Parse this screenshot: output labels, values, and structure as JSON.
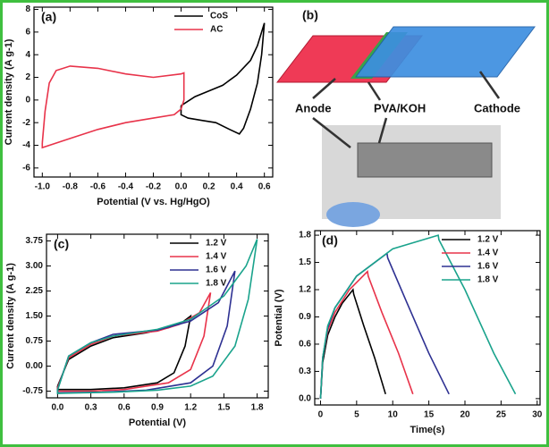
{
  "chart_data": [
    {
      "type": "line",
      "title": "(a)",
      "x_label": "Potential (V vs. Hg/HgO)",
      "y_label": "Current density (A g-1)",
      "xlim": [
        -1.06,
        0.66
      ],
      "ylim": [
        -6.8,
        8.2
      ],
      "xticks": [
        {
          "value": -1.0,
          "label": "-1.0"
        },
        -0.8,
        -0.6,
        -0.4,
        -0.2,
        {
          "value": 0.0,
          "label": "0.0"
        },
        0.2,
        0.4,
        0.6
      ],
      "yticks": [
        -6,
        -4,
        -2,
        0,
        2,
        4,
        6,
        8
      ],
      "legend": "upper right",
      "series": [
        {
          "name": "CoS",
          "color": "#000000",
          "x": [
            0,
            0.1,
            0.2,
            0.3,
            0.4,
            0.5,
            0.55,
            0.6,
            0.58,
            0.55,
            0.5,
            0.45,
            0.42,
            0.35,
            0.25,
            0.15,
            0.05,
            0,
            0
          ],
          "values": [
            -0.5,
            0.3,
            0.8,
            1.3,
            2.2,
            3.5,
            4.8,
            6.8,
            4,
            1.5,
            -0.8,
            -2.5,
            -3,
            -2.6,
            -2,
            -1.8,
            -1.6,
            -1.3,
            -0.5
          ]
        },
        {
          "name": "AC",
          "color": "#e8334a",
          "x": [
            -1.0,
            -0.98,
            -0.95,
            -0.9,
            -0.8,
            -0.6,
            -0.4,
            -0.2,
            0,
            0.02,
            0.02,
            0,
            -0.05,
            -0.2,
            -0.4,
            -0.6,
            -0.8,
            -1.0,
            -1.0
          ],
          "values": [
            -3.8,
            -1,
            1.5,
            2.6,
            3.0,
            2.8,
            2.3,
            2.0,
            2.3,
            2.4,
            0,
            -0.8,
            -1.3,
            -1.6,
            -2.0,
            -2.6,
            -3.4,
            -4.2,
            -3.8
          ]
        }
      ]
    },
    {
      "type": "line",
      "title": "(c)",
      "x_label": "Potential (V)",
      "y_label": "Current density (A g-1)",
      "xlim": [
        -0.1,
        1.9
      ],
      "ylim": [
        -0.95,
        3.95
      ],
      "xticks": [
        {
          "value": 0.0,
          "label": "0.0"
        },
        0.3,
        0.6,
        0.9,
        1.2,
        1.5,
        1.8
      ],
      "yticks": [
        -0.75,
        {
          "value": 0.0,
          "label": "0.00"
        },
        0.75,
        {
          "value": 1.5,
          "label": "1.50"
        },
        2.25,
        {
          "value": 3.0,
          "label": "3.00"
        },
        3.75
      ],
      "legend": "upper right",
      "series": [
        {
          "name": "1.2 V",
          "color": "#000000",
          "x": [
            0,
            0.1,
            0.3,
            0.5,
            0.8,
            1.0,
            1.12,
            1.2,
            1.15,
            1.05,
            0.9,
            0.6,
            0.3,
            0,
            0
          ],
          "values": [
            -0.6,
            0.2,
            0.6,
            0.85,
            1.0,
            1.15,
            1.3,
            1.5,
            0.6,
            -0.2,
            -0.5,
            -0.65,
            -0.7,
            -0.7,
            -0.6
          ]
        },
        {
          "name": "1.4 V",
          "color": "#e8334a",
          "x": [
            0,
            0.1,
            0.3,
            0.5,
            0.9,
            1.1,
            1.28,
            1.38,
            1.32,
            1.2,
            1.0,
            0.6,
            0.3,
            0,
            0
          ],
          "values": [
            -0.65,
            0.25,
            0.65,
            0.9,
            1.05,
            1.25,
            1.6,
            2.2,
            0.9,
            -0.1,
            -0.5,
            -0.7,
            -0.75,
            -0.75,
            -0.65
          ]
        },
        {
          "name": "1.6 V",
          "color": "#2e3192",
          "x": [
            0,
            0.1,
            0.3,
            0.5,
            0.9,
            1.2,
            1.45,
            1.6,
            1.53,
            1.4,
            1.2,
            0.8,
            0.4,
            0,
            0
          ],
          "values": [
            -0.7,
            0.3,
            0.7,
            0.95,
            1.08,
            1.35,
            1.9,
            2.85,
            1.2,
            0.0,
            -0.5,
            -0.72,
            -0.78,
            -0.8,
            -0.7
          ]
        },
        {
          "name": "1.8 V",
          "color": "#1aa38c",
          "x": [
            0,
            0.1,
            0.3,
            0.5,
            0.9,
            1.2,
            1.5,
            1.7,
            1.8,
            1.72,
            1.6,
            1.4,
            1.2,
            0.9,
            0.5,
            0.2,
            0,
            0
          ],
          "values": [
            -0.72,
            0.3,
            0.7,
            0.9,
            1.1,
            1.4,
            2.1,
            3.0,
            3.8,
            2.0,
            0.6,
            -0.3,
            -0.6,
            -0.72,
            -0.78,
            -0.8,
            -0.82,
            -0.72
          ]
        }
      ]
    },
    {
      "type": "line",
      "title": "(d)",
      "x_label": "Time(s)",
      "y_label": "Potential (V)",
      "xlim": [
        -0.8,
        30.4
      ],
      "ylim": [
        -0.07,
        1.85
      ],
      "xticks": [
        0,
        5,
        10,
        15,
        20,
        25,
        30
      ],
      "yticks": [
        {
          "value": 0.0,
          "label": "0.0"
        },
        0.3,
        0.6,
        0.9,
        1.2,
        1.5,
        1.8
      ],
      "legend": "upper right",
      "series": [
        {
          "name": "1.2 V",
          "color": "#000000",
          "x": [
            0,
            0.3,
            1,
            2,
            3,
            4.5,
            4.6,
            6,
            7.5,
            9
          ],
          "values": [
            0,
            0.4,
            0.7,
            0.9,
            1.05,
            1.2,
            1.15,
            0.8,
            0.45,
            0.05
          ]
        },
        {
          "name": "1.4 V",
          "color": "#e8334a",
          "x": [
            0,
            0.3,
            1,
            2,
            4,
            6.5,
            6.6,
            8.5,
            10.8,
            12.8
          ],
          "values": [
            0,
            0.45,
            0.75,
            0.95,
            1.2,
            1.4,
            1.35,
            0.95,
            0.5,
            0.05
          ]
        },
        {
          "name": "1.6 V",
          "color": "#2e3192",
          "x": [
            0,
            0.3,
            1,
            2,
            5,
            9.2,
            9.3,
            12,
            15,
            17.8
          ],
          "values": [
            0,
            0.45,
            0.78,
            1.0,
            1.35,
            1.6,
            1.55,
            1.05,
            0.5,
            0.05
          ]
        },
        {
          "name": "1.8 V",
          "color": "#1aa38c",
          "x": [
            0,
            0.3,
            1,
            2,
            5,
            10,
            16.3,
            16.4,
            20,
            24,
            27
          ],
          "values": [
            0,
            0.45,
            0.8,
            1.0,
            1.35,
            1.65,
            1.8,
            1.75,
            1.2,
            0.5,
            0.05
          ]
        }
      ]
    }
  ],
  "diagram": {
    "label": "(b)",
    "parts": [
      "Anode",
      "PVA/KOH",
      "Cathode"
    ]
  }
}
